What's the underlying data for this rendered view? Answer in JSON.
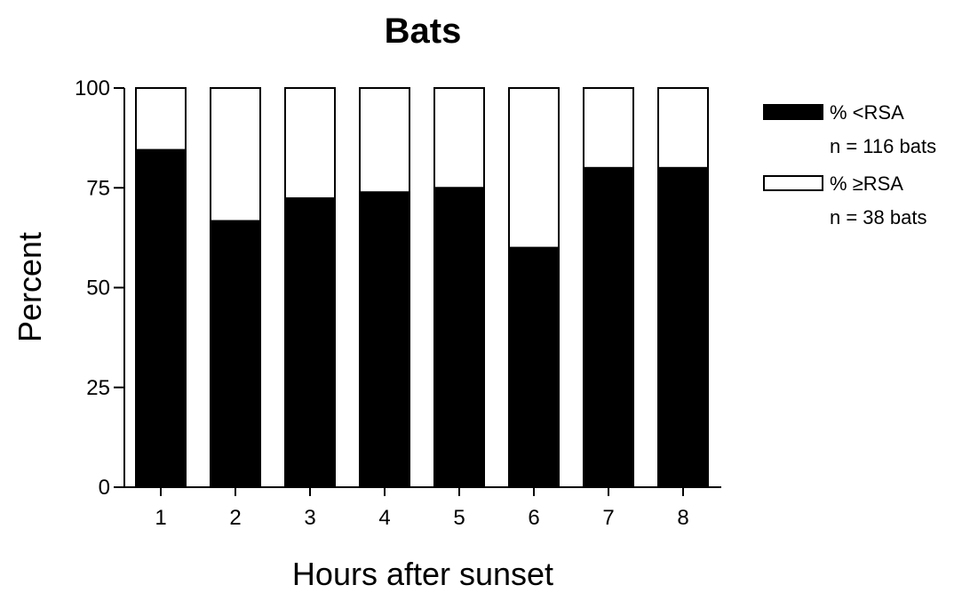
{
  "chart_data": {
    "type": "bar",
    "stacked": true,
    "percent_stacked": true,
    "title": "Bats",
    "xlabel": "Hours after sunset",
    "ylabel": "Percent",
    "categories": [
      "1",
      "2",
      "3",
      "4",
      "5",
      "6",
      "7",
      "8"
    ],
    "ylim": [
      0,
      100
    ],
    "yticks": [
      0,
      25,
      50,
      75,
      100
    ],
    "grid": false,
    "legend_position": "right",
    "series": [
      {
        "name": "% <RSA",
        "note": "n = 116 bats",
        "color": "#000000",
        "values": [
          84.5,
          66.7,
          72.4,
          73.9,
          75.0,
          60.0,
          80.0,
          80.0
        ]
      },
      {
        "name": "% ≥RSA",
        "note": "n = 38 bats",
        "color": "#ffffff",
        "values": [
          15.5,
          33.3,
          27.6,
          26.1,
          25.0,
          40.0,
          20.0,
          20.0
        ]
      }
    ]
  }
}
